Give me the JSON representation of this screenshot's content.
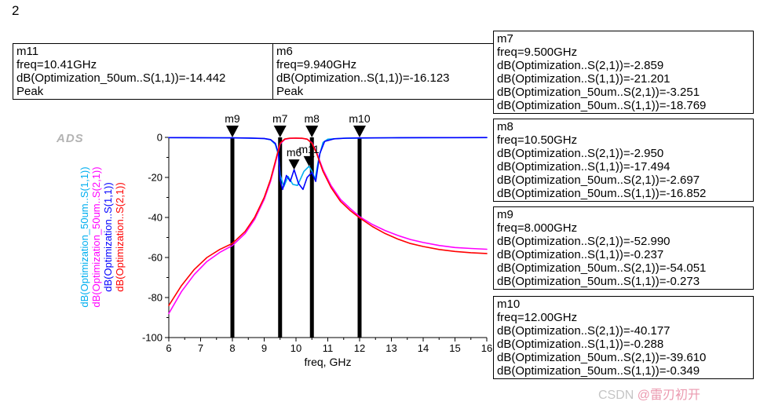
{
  "page": {
    "number": "2"
  },
  "watermarks": {
    "ads_label": "ADS",
    "csdn_prefix": "CSDN",
    "csdn_handle": "@雷刃初开"
  },
  "marker_boxes": {
    "top": [
      {
        "id": "m11",
        "lines": [
          "m11",
          "freq=10.41GHz",
          "dB(Optimization_50um..S(1,1))=-14.442",
          "Peak"
        ]
      },
      {
        "id": "m6",
        "lines": [
          "m6",
          "freq=9.940GHz",
          "dB(Optimization..S(1,1))=-16.123",
          "Peak"
        ]
      }
    ],
    "right": [
      {
        "id": "m7",
        "lines": [
          "m7",
          "freq=9.500GHz",
          "dB(Optimization..S(2,1))=-2.859",
          "dB(Optimization..S(1,1))=-21.201",
          "dB(Optimization_50um..S(2,1))=-3.251",
          "dB(Optimization_50um..S(1,1))=-18.769"
        ]
      },
      {
        "id": "m8",
        "lines": [
          "m8",
          "freq=10.50GHz",
          "dB(Optimization..S(2,1))=-2.950",
          "dB(Optimization..S(1,1))=-17.494",
          "dB(Optimization_50um..S(2,1))=-2.697",
          "dB(Optimization_50um..S(1,1))=-16.852"
        ]
      },
      {
        "id": "m9",
        "lines": [
          "m9",
          "freq=8.000GHz",
          "dB(Optimization..S(2,1))=-52.990",
          "dB(Optimization..S(1,1))=-0.237",
          "dB(Optimization_50um..S(2,1))=-54.051",
          "dB(Optimization_50um..S(1,1))=-0.273"
        ]
      },
      {
        "id": "m10",
        "lines": [
          "m10",
          "freq=12.00GHz",
          "dB(Optimization..S(2,1))=-40.177",
          "dB(Optimization..S(1,1))=-0.288",
          "dB(Optimization_50um..S(2,1))=-39.610",
          "dB(Optimization_50um..S(1,1))=-0.349"
        ]
      }
    ]
  },
  "chart_data": {
    "type": "line",
    "title": "",
    "xlabel": "freq, GHz",
    "ylabel": "",
    "xlim": [
      6,
      16
    ],
    "ylim": [
      -100,
      0
    ],
    "xticks": [
      6,
      7,
      8,
      9,
      10,
      11,
      12,
      13,
      14,
      15,
      16
    ],
    "yticks": [
      0,
      -20,
      -40,
      -60,
      -80,
      -100
    ],
    "grid": false,
    "legend_position": "left-rotated",
    "series": [
      {
        "name": "dB(Optimization_50um..S(1,1))",
        "color": "#00AEEF",
        "x": [
          6,
          6.5,
          7,
          7.5,
          8,
          8.5,
          9,
          9.2,
          9.35,
          9.45,
          9.5,
          9.62,
          9.75,
          9.9,
          10.05,
          10.25,
          10.41,
          10.5,
          10.6,
          10.72,
          10.85,
          11,
          11.5,
          12,
          13,
          14,
          15,
          16
        ],
        "y": [
          -0.12,
          -0.15,
          -0.18,
          -0.22,
          -0.273,
          -0.35,
          -0.6,
          -1.2,
          -3.5,
          -9,
          -18.769,
          -24.5,
          -19.5,
          -23.5,
          -24,
          -17,
          -14.442,
          -16.852,
          -21,
          -10,
          -2.5,
          -0.9,
          -0.45,
          -0.349,
          -0.2,
          -0.15,
          -0.12,
          -0.1
        ]
      },
      {
        "name": "dB(Optimization_50um..S(2,1))",
        "color": "#FF00FF",
        "x": [
          6,
          6.4,
          6.8,
          7.2,
          7.6,
          8,
          8.4,
          8.7,
          9,
          9.2,
          9.35,
          9.5,
          9.65,
          9.8,
          10,
          10.2,
          10.35,
          10.5,
          10.65,
          10.85,
          11.1,
          11.4,
          11.7,
          12,
          12.4,
          12.8,
          13.2,
          13.6,
          14,
          14.5,
          15,
          15.5,
          16
        ],
        "y": [
          -88,
          -77,
          -68.5,
          -62,
          -57.5,
          -54.051,
          -48,
          -41,
          -31,
          -22,
          -13,
          -3.251,
          -1,
          -0.5,
          -0.4,
          -0.5,
          -0.85,
          -2.697,
          -7.5,
          -16,
          -24,
          -31,
          -35.5,
          -39.61,
          -43.5,
          -46.5,
          -49,
          -51,
          -52.5,
          -54,
          -55,
          -55.5,
          -55.9
        ]
      },
      {
        "name": "dB(Optimization..S(1,1))",
        "color": "#0000FF",
        "x": [
          6,
          6.5,
          7,
          7.5,
          8,
          8.5,
          9,
          9.2,
          9.35,
          9.45,
          9.5,
          9.58,
          9.7,
          9.82,
          9.94,
          10.08,
          10.22,
          10.35,
          10.5,
          10.62,
          10.75,
          10.9,
          11.2,
          11.6,
          12,
          13,
          14,
          15,
          16
        ],
        "y": [
          -0.1,
          -0.12,
          -0.15,
          -0.19,
          -0.237,
          -0.3,
          -0.55,
          -1.1,
          -3,
          -8,
          -21.201,
          -26,
          -19,
          -22,
          -16.123,
          -23,
          -26,
          -20,
          -17.494,
          -22,
          -8,
          -2,
          -0.7,
          -0.4,
          -0.288,
          -0.18,
          -0.13,
          -0.1,
          -0.09
        ]
      },
      {
        "name": "dB(Optimization..S(2,1))",
        "color": "#FF0000",
        "x": [
          6,
          6.4,
          6.8,
          7.2,
          7.6,
          8,
          8.4,
          8.7,
          9,
          9.2,
          9.35,
          9.5,
          9.65,
          9.8,
          10,
          10.2,
          10.35,
          10.5,
          10.65,
          10.85,
          11.1,
          11.4,
          11.7,
          12,
          12.4,
          12.8,
          13.2,
          13.6,
          14,
          14.5,
          15,
          15.5,
          16
        ],
        "y": [
          -84,
          -74,
          -66,
          -60,
          -56,
          -52.99,
          -47,
          -40,
          -30,
          -21,
          -12,
          -2.859,
          -0.8,
          -0.4,
          -0.35,
          -0.45,
          -0.9,
          -2.95,
          -8,
          -17,
          -25,
          -32,
          -36.5,
          -40.177,
          -44.5,
          -48,
          -50.8,
          -53,
          -54.5,
          -56,
          -57,
          -57.6,
          -58
        ]
      }
    ],
    "vertical_markers": [
      {
        "label": "m9",
        "freq": 8.0
      },
      {
        "label": "m7",
        "freq": 9.5
      },
      {
        "label": "m8",
        "freq": 10.5
      },
      {
        "label": "m10",
        "freq": 12.0
      }
    ],
    "point_markers": [
      {
        "label": "m6",
        "freq": 9.94,
        "value": -16.123,
        "series": "dB(Optimization..S(1,1))"
      },
      {
        "label": "m11",
        "freq": 10.41,
        "value": -14.442,
        "series": "dB(Optimization_50um..S(1,1))"
      }
    ]
  }
}
